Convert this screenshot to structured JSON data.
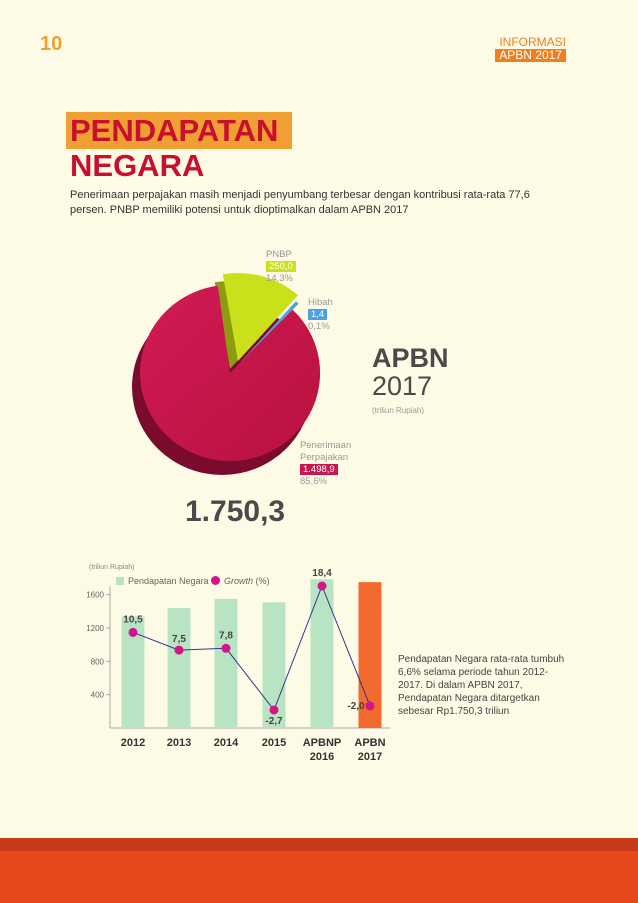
{
  "header": {
    "page_number": "10",
    "tag_line1": "INFORMASI",
    "tag_line2": "APBN 2017"
  },
  "title": {
    "line1": "PENDAPATAN",
    "line2": "NEGARA"
  },
  "intro": "Penerimaan perpajakan masih menjadi penyumbang terbesar dengan kontribusi rata-rata 77,6 persen. PNBP memiliki potensi untuk dioptimalkan dalam APBN 2017",
  "pie": {
    "heading1": "APBN",
    "heading2": "2017",
    "unit": "(triliun Rupiah)",
    "total": "1.750,3",
    "slices": [
      {
        "name": "PNBP",
        "name_line2": "",
        "value": "250,0",
        "share": "14,3%",
        "share_value": 14.3,
        "color": "#c9e01a"
      },
      {
        "name": "Hibah",
        "name_line2": "",
        "value": "1,4",
        "share": "0,1%",
        "share_value": 0.1,
        "color": "#4aa3df"
      },
      {
        "name": "Penerimaan",
        "name_line2": "Perpajakan",
        "value": "1.498,9",
        "share": "85,6%",
        "share_value": 85.6,
        "color": "#c8174f"
      }
    ]
  },
  "bar_chart": {
    "unit": "(triliun Rupiah)",
    "legend_bar": "Pendapatan Negara",
    "legend_line": "Growth",
    "legend_line_suffix": " (%)",
    "note": "Pendapatan Negara rata-rata tumbuh 6,6% selama periode tahun 2012-2017. Di dalam APBN 2017, Pendapatan Negara ditargetkan sebesar Rp1.750,3 triliun"
  },
  "chart_data": {
    "type": "bar",
    "categories": [
      [
        "2012"
      ],
      [
        "2013"
      ],
      [
        "2014"
      ],
      [
        "2015"
      ],
      [
        "APBNP",
        "2016"
      ],
      [
        "APBN",
        "2017"
      ]
    ],
    "series": [
      {
        "name": "Pendapatan Negara",
        "values": [
          1338,
          1439,
          1550,
          1508,
          1786,
          1750
        ],
        "colors": [
          "#b8e4c4",
          "#b8e4c4",
          "#b8e4c4",
          "#b8e4c4",
          "#b8e4c4",
          "#f26a2e"
        ]
      },
      {
        "name": "Growth (%)",
        "type": "line",
        "values": [
          10.5,
          7.5,
          7.8,
          -2.7,
          18.4,
          -2.0
        ],
        "labels": [
          "10,5",
          "7,5",
          "7,8",
          "-2,7",
          "18,4",
          "-2,0"
        ],
        "color": "#d4148b",
        "line_color": "#2d3a8c"
      }
    ],
    "yticks": [
      400,
      800,
      1200,
      1600
    ],
    "ylim": [
      0,
      1800
    ]
  }
}
